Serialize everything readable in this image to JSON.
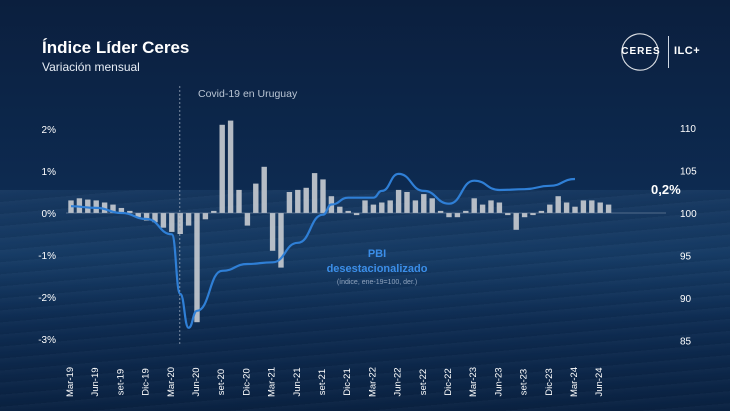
{
  "header": {
    "title": "Índice Líder Ceres",
    "subtitle": "Variación mensual"
  },
  "logo": {
    "left_text": "CERES",
    "right_text": "ILC+"
  },
  "annotations": {
    "covid": "Covid-19 en Uruguay",
    "pbi_line1": "PBI",
    "pbi_line2": "desestacionalizado",
    "pbi_line3": "(índice, ene-19=100, der.)",
    "last_value": "0,2%"
  },
  "colors": {
    "bar": "#c8ccd2",
    "line": "#2f7fd6",
    "pbi_text": "#3b8ee8"
  },
  "chart_data": {
    "type": "bar",
    "title": "Índice Líder Ceres",
    "subtitle": "Variación mensual",
    "x_tick_labels": [
      "Mar-19",
      "Jun-19",
      "set-19",
      "Dic-19",
      "Mar-20",
      "Jun-20",
      "set-20",
      "Dic-20",
      "Mar-21",
      "Jun-21",
      "set-21",
      "Dic-21",
      "Mar-22",
      "Jun-22",
      "set-22",
      "Dic-22",
      "Mar-23",
      "Jun-23",
      "set-23",
      "Dic-23",
      "Mar-24",
      "Jun-24"
    ],
    "left_axis": {
      "ylim": [
        -3,
        2.5
      ],
      "ticks": [
        "2%",
        "1%",
        "0%",
        "-1%",
        "-2%",
        "-3%"
      ],
      "tick_values": [
        2,
        1,
        0,
        -1,
        -2,
        -3
      ]
    },
    "right_axis": {
      "ylim": [
        85,
        112
      ],
      "ticks": [
        "110",
        "105",
        "100",
        "95",
        "90",
        "85"
      ],
      "tick_values": [
        110,
        105,
        100,
        95,
        90,
        85
      ]
    },
    "series": [
      {
        "type": "bar",
        "axis": "left",
        "unit": "%",
        "start": "Mar-19",
        "values": [
          0.3,
          0.35,
          0.32,
          0.3,
          0.25,
          0.2,
          0.12,
          0.05,
          -0.1,
          -0.18,
          -0.22,
          -0.35,
          -0.45,
          -0.5,
          -0.3,
          -2.6,
          -0.15,
          0.05,
          2.1,
          2.2,
          0.55,
          -0.3,
          0.7,
          1.1,
          -0.9,
          -1.3,
          0.5,
          0.55,
          0.6,
          0.95,
          0.8,
          0.4,
          0.15,
          0.05,
          -0.05,
          0.3,
          0.2,
          0.25,
          0.3,
          0.55,
          0.5,
          0.3,
          0.45,
          0.35,
          0.05,
          -0.1,
          -0.1,
          0.05,
          0.35,
          0.2,
          0.3,
          0.25,
          -0.05,
          -0.4,
          -0.1,
          -0.05,
          0.05,
          0.2,
          0.4,
          0.25,
          0.15,
          0.3,
          0.3,
          0.25,
          0.2
        ]
      },
      {
        "type": "line",
        "name": "PBI desestacionalizado",
        "axis": "right",
        "points": [
          [
            "Mar-19",
            100.8
          ],
          [
            "Jun-19",
            100.6
          ],
          [
            "set-19",
            100.0
          ],
          [
            "Dic-19",
            99.3
          ],
          [
            "Mar-20",
            97.5
          ],
          [
            "Abr-20",
            90.5
          ],
          [
            "May-20",
            86.5
          ],
          [
            "Jun-20",
            88.5
          ],
          [
            "set-20",
            93.2
          ],
          [
            "Dic-20",
            94.0
          ],
          [
            "Mar-21",
            94.2
          ],
          [
            "Jun-21",
            96.5
          ],
          [
            "set-21",
            99.8
          ],
          [
            "Oct-21",
            101.0
          ],
          [
            "Dic-21",
            101.8
          ],
          [
            "Mar-22",
            101.8
          ],
          [
            "Abr-22",
            102.6
          ],
          [
            "Jun-22",
            104.6
          ],
          [
            "set-22",
            102.6
          ],
          [
            "Dic-22",
            101.1
          ],
          [
            "Mar-23",
            103.8
          ],
          [
            "Jun-23",
            102.7
          ],
          [
            "set-23",
            102.8
          ],
          [
            "Dic-23",
            103.2
          ],
          [
            "Mar-24",
            104.0
          ]
        ]
      }
    ],
    "event_marker": {
      "at": "Mar-20",
      "label": "Covid-19 en Uruguay"
    },
    "grid": false,
    "legend": "inline annotation"
  }
}
